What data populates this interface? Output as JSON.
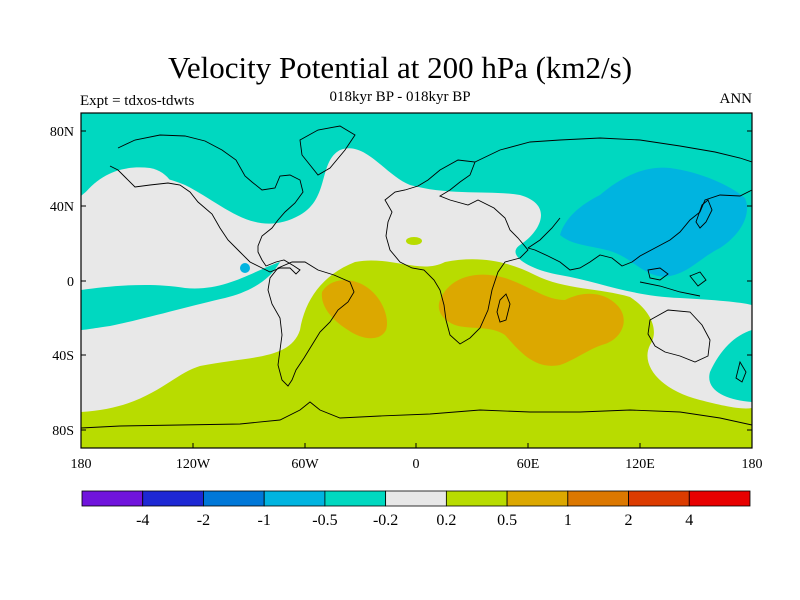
{
  "header": {
    "title": "Velocity Potential at 200 hPa (km2/s)",
    "subtitle": "018kyr BP - 018kyr BP",
    "left_label": "Expt = tdxos-tdwts",
    "right_label": "ANN"
  },
  "map": {
    "lat_ticks": [
      "80N",
      "40N",
      "0",
      "40S",
      "80S"
    ],
    "lon_ticks": [
      "180",
      "120W",
      "60W",
      "0",
      "60E",
      "120E",
      "180"
    ],
    "colors": {
      "ocean_default": "#00d8c0",
      "near_zero": "#e8e8e8",
      "positive_low": "#b8dc00",
      "positive_mid": "#dca800",
      "negative_mid": "#00b4e0",
      "coast": "#000000"
    }
  },
  "colorbar": {
    "colors": [
      "#7014dc",
      "#1e28d4",
      "#0078d8",
      "#00b4e0",
      "#00d8c0",
      "#e8e8e8",
      "#b8dc00",
      "#dca800",
      "#dc7800",
      "#dc3c00",
      "#e80000"
    ],
    "labels": [
      "-4",
      "-2",
      "-1",
      "-0.5",
      "-0.2",
      "0.2",
      "0.5",
      "1",
      "2",
      "4"
    ]
  }
}
